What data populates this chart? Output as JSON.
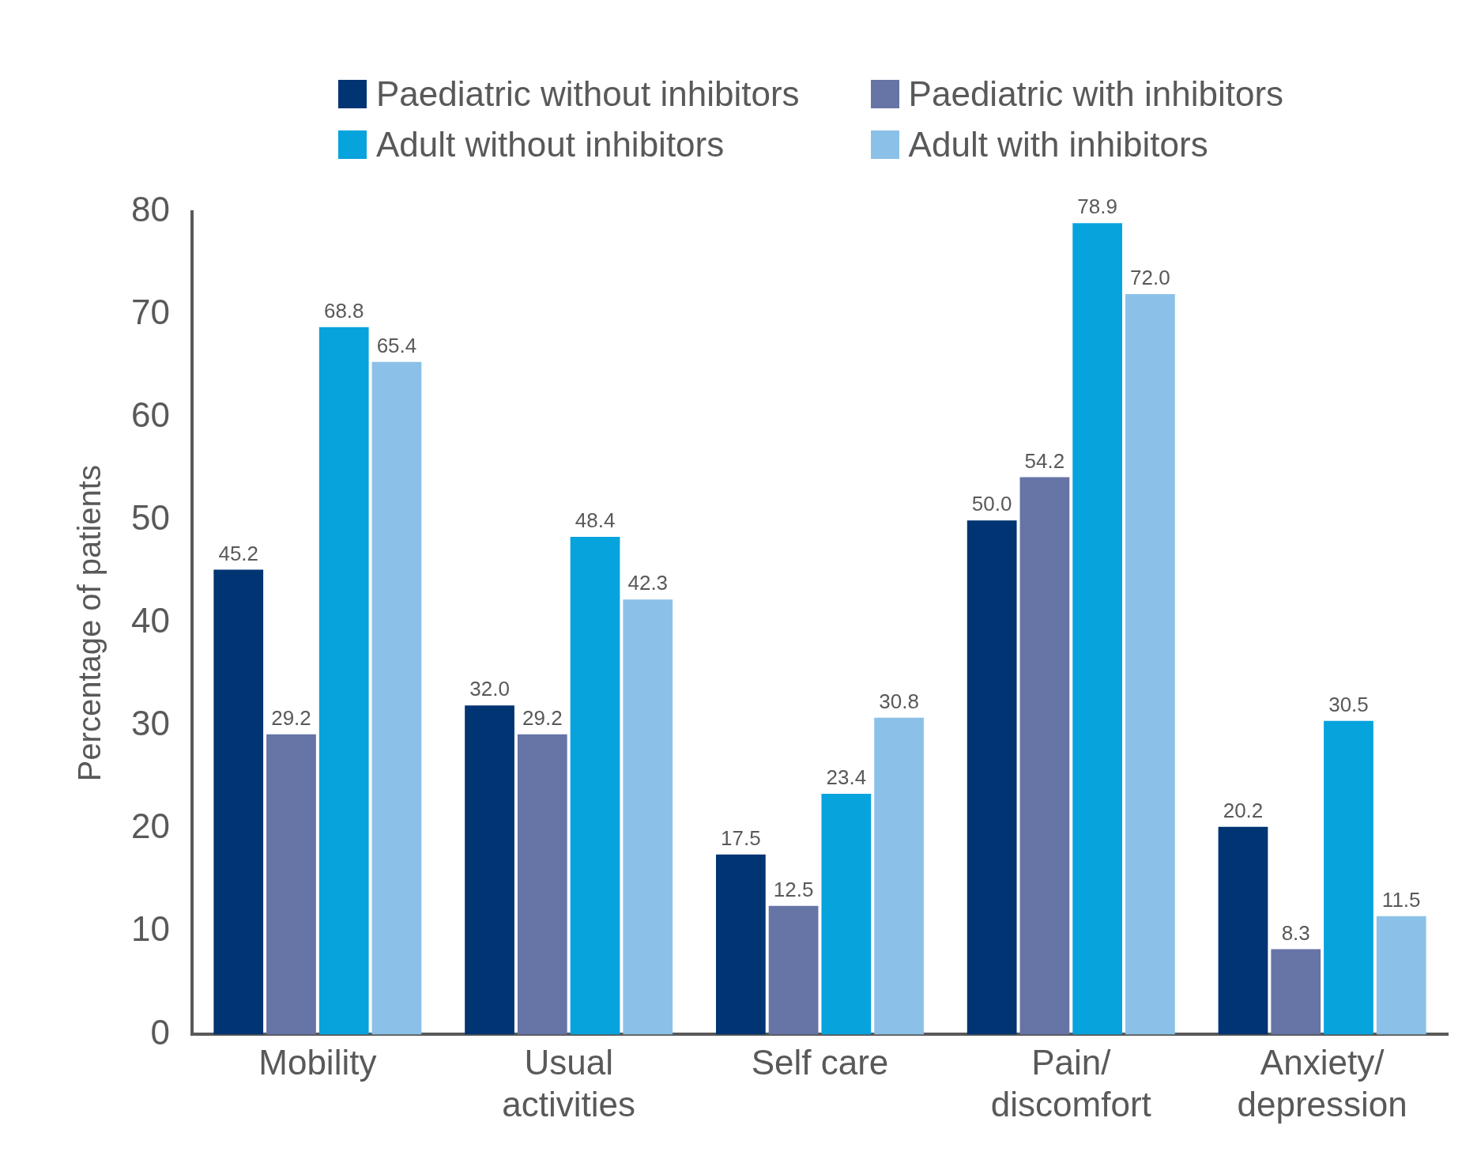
{
  "chart_data": {
    "type": "bar",
    "ylabel": "Percentage of patients",
    "categories": [
      "Mobility",
      "Usual\nactivities",
      "Self care",
      "Pain/\ndiscomfort",
      "Anxiety/\ndepression"
    ],
    "series": [
      {
        "name": "Paediatric without inhibitors",
        "color": "#003473",
        "values": [
          45.2,
          32.0,
          17.5,
          50.0,
          20.2
        ],
        "value_labels": [
          "45.2",
          "32.0",
          "17.5",
          "50.0",
          "20.2"
        ]
      },
      {
        "name": "Paediatric with inhibitors",
        "color": "#6674a6",
        "values": [
          29.2,
          29.2,
          12.5,
          54.2,
          8.3
        ],
        "value_labels": [
          "29.2",
          "29.2",
          "12.5",
          "54.2",
          "8.3"
        ]
      },
      {
        "name": "Adult without inhibitors",
        "color": "#07a3dd",
        "values": [
          68.8,
          48.4,
          23.4,
          78.9,
          30.5
        ],
        "value_labels": [
          "68.8",
          "48.4",
          "23.4",
          "78.9",
          "30.5"
        ]
      },
      {
        "name": "Adult with inhibitors",
        "color": "#8bc1e8",
        "values": [
          65.4,
          42.3,
          30.8,
          72.0,
          11.5
        ],
        "value_labels": [
          "65.4",
          "42.3",
          "30.8",
          "72.0",
          "11.5"
        ]
      }
    ],
    "ylim": [
      0,
      80
    ],
    "yticks": [
      0,
      10,
      20,
      30,
      40,
      50,
      60,
      70,
      80
    ],
    "grid": false,
    "legend": "top"
  }
}
